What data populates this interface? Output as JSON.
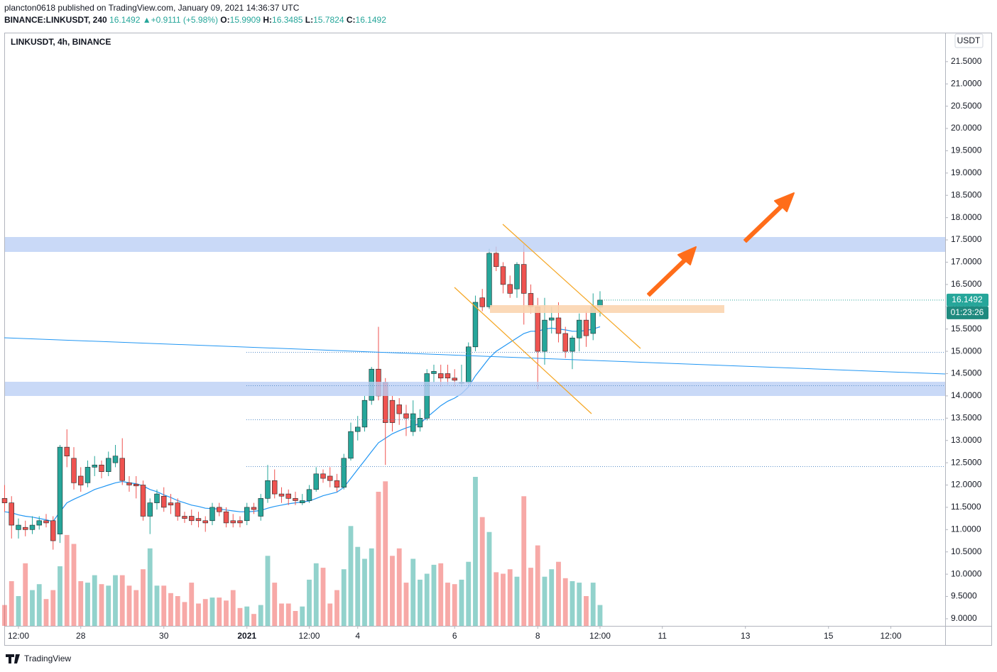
{
  "header": {
    "published": "plancton0618 published on TradingView.com, January 09, 2021 14:36:37 UTC",
    "symbol": "BINANCE:LINKUSDT, 240",
    "change": "+0.9111 (+5.98%)",
    "currency": "USDT",
    "countdown": "01:23:26",
    "brand": "TradingView"
  },
  "chart_data": {
    "type": "candlestick",
    "title": "LINKUSDT, 4h, BINANCE",
    "up_color": "#26a69a",
    "down_color": "#ef5350",
    "ma_color": "#2196f3",
    "open": [
      11.7,
      11.6,
      11.0,
      11.05,
      11.0,
      11.1,
      11.2,
      11.2,
      10.9,
      12.85,
      12.6,
      12.2,
      12.05,
      12.4,
      12.45,
      12.3,
      12.5,
      12.6,
      12.05,
      12.02,
      12.0,
      11.3,
      11.6,
      11.75,
      11.6,
      11.6,
      11.3,
      11.3,
      11.25,
      11.2,
      11.2,
      11.5,
      11.4,
      11.2,
      11.2,
      11.2,
      11.5,
      11.3,
      11.7,
      12.1,
      11.8,
      11.8,
      11.7,
      11.6,
      11.65,
      11.9,
      12.25,
      12.2,
      12.1,
      11.95,
      12.6,
      13.2,
      13.3,
      13.9,
      14.6,
      14.3,
      13.9,
      13.8,
      13.6,
      13.2,
      13.3,
      13.5,
      14.5,
      14.5,
      14.5,
      14.4,
      14.3,
      14.3,
      15.1,
      16.2,
      16.0,
      17.2,
      16.9,
      16.5,
      16.4,
      16.95,
      16.3,
      16.0,
      15.0,
      15.7,
      15.75,
      15.4,
      15.0,
      15.3,
      15.7,
      15.4,
      15.9909
    ],
    "high": [
      12.0,
      11.75,
      11.25,
      11.2,
      11.3,
      11.3,
      11.35,
      11.3,
      12.9,
      13.25,
      12.85,
      12.4,
      12.55,
      12.65,
      12.55,
      12.75,
      12.9,
      13.05,
      12.2,
      12.2,
      12.1,
      11.7,
      11.9,
      11.95,
      11.8,
      11.7,
      11.4,
      11.45,
      11.4,
      11.3,
      11.6,
      11.6,
      11.5,
      11.35,
      11.3,
      11.6,
      11.6,
      11.8,
      12.45,
      12.35,
      11.95,
      11.9,
      11.85,
      11.8,
      12.0,
      12.4,
      12.35,
      12.4,
      12.25,
      12.7,
      13.4,
      13.55,
      14.0,
      14.65,
      15.55,
      14.4,
      14.0,
      13.95,
      13.8,
      13.9,
      13.7,
      14.6,
      14.7,
      14.7,
      14.7,
      14.6,
      14.7,
      15.2,
      16.25,
      16.4,
      17.3,
      17.35,
      17.0,
      16.7,
      17.0,
      17.4,
      16.5,
      16.2,
      16.2,
      16.0,
      16.1,
      15.55,
      15.35,
      15.85,
      15.9,
      16.3,
      16.3485
    ],
    "low": [
      11.4,
      10.8,
      10.8,
      10.85,
      10.9,
      11.0,
      11.05,
      10.55,
      10.7,
      12.4,
      11.9,
      11.85,
      11.95,
      12.2,
      12.15,
      12.2,
      12.4,
      12.0,
      11.85,
      11.7,
      11.2,
      10.9,
      11.45,
      11.4,
      11.35,
      11.2,
      11.15,
      11.1,
      11.05,
      10.95,
      11.1,
      11.3,
      11.05,
      11.05,
      11.05,
      11.1,
      11.35,
      11.2,
      11.6,
      11.7,
      11.6,
      11.55,
      11.55,
      11.55,
      11.6,
      11.85,
      12.05,
      11.95,
      11.85,
      11.9,
      12.55,
      13.0,
      13.2,
      13.8,
      13.9,
      12.45,
      13.2,
      13.35,
      13.1,
      13.1,
      13.2,
      13.45,
      14.3,
      14.2,
      14.25,
      14.2,
      14.2,
      14.25,
      15.0,
      15.9,
      15.95,
      16.8,
      16.3,
      16.2,
      16.2,
      15.6,
      15.85,
      14.15,
      14.7,
      15.4,
      15.2,
      14.85,
      14.6,
      15.0,
      15.1,
      15.25,
      15.7824
    ],
    "close": [
      11.6,
      11.1,
      11.1,
      11.0,
      11.1,
      11.2,
      11.15,
      10.75,
      12.85,
      12.65,
      12.05,
      12.0,
      12.4,
      12.45,
      12.3,
      12.6,
      12.65,
      12.1,
      12.0,
      11.98,
      11.3,
      11.6,
      11.8,
      11.5,
      11.55,
      11.3,
      11.25,
      11.2,
      11.2,
      11.15,
      11.5,
      11.4,
      11.15,
      11.15,
      11.15,
      11.5,
      11.45,
      11.7,
      12.1,
      11.8,
      11.75,
      11.7,
      11.65,
      11.65,
      11.9,
      12.25,
      12.15,
      12.1,
      11.95,
      12.6,
      13.2,
      13.3,
      13.9,
      14.6,
      14.0,
      13.4,
      13.4,
      13.6,
      13.5,
      13.6,
      13.5,
      14.5,
      14.55,
      14.4,
      14.4,
      14.35,
      14.3,
      15.1,
      16.1,
      16.0,
      17.2,
      16.9,
      16.5,
      16.3,
      16.95,
      16.3,
      16.0,
      15.0,
      15.7,
      15.75,
      15.4,
      15.0,
      15.3,
      15.7,
      15.35,
      16.0,
      16.1492
    ],
    "volume": [
      14,
      30,
      20,
      42,
      24,
      28,
      18,
      24,
      40,
      61,
      55,
      30,
      29,
      34,
      28,
      27,
      34,
      34,
      27,
      24,
      38,
      52,
      27,
      27,
      22,
      20,
      16,
      29,
      15,
      18,
      19,
      19,
      17,
      24,
      12,
      13,
      8,
      14,
      47,
      29,
      15,
      15,
      10,
      13,
      31,
      42,
      39,
      15,
      24,
      38,
      67,
      53,
      45,
      52,
      90,
      97,
      47,
      52,
      29,
      45,
      31,
      35,
      41,
      42,
      29,
      28,
      31,
      43,
      100,
      73,
      63,
      36,
      35,
      38,
      33,
      87,
      39,
      54,
      33,
      38,
      43,
      32,
      30,
      29,
      20,
      29,
      14
    ],
    "ma": [
      11.4,
      11.38,
      11.33,
      11.3,
      11.28,
      11.25,
      11.22,
      11.18,
      11.4,
      11.6,
      11.68,
      11.75,
      11.82,
      11.9,
      11.95,
      12.0,
      12.05,
      12.08,
      12.05,
      12.03,
      11.98,
      11.9,
      11.85,
      11.78,
      11.72,
      11.65,
      11.6,
      11.55,
      11.52,
      11.48,
      11.47,
      11.46,
      11.44,
      11.42,
      11.4,
      11.4,
      11.41,
      11.43,
      11.48,
      11.52,
      11.55,
      11.58,
      11.6,
      11.62,
      11.64,
      11.7,
      11.76,
      11.8,
      11.84,
      11.95,
      12.15,
      12.35,
      12.55,
      12.75,
      12.95,
      13.05,
      13.15,
      13.22,
      13.28,
      13.33,
      13.38,
      13.52,
      13.65,
      13.78,
      13.88,
      13.95,
      14.05,
      14.2,
      14.45,
      14.65,
      14.85,
      15.0,
      15.1,
      15.2,
      15.3,
      15.4,
      15.45,
      15.45,
      15.5,
      15.52,
      15.5,
      15.48,
      15.45,
      15.45,
      15.47,
      15.5,
      15.55
    ],
    "xlim": [
      -0.05,
      135.85
    ],
    "xticks": [
      {
        "value": 2,
        "label": "12:00"
      },
      {
        "value": 11,
        "label": "28"
      },
      {
        "value": 23,
        "label": "30"
      },
      {
        "value": 35,
        "label": "2021"
      },
      {
        "value": 44,
        "label": "12:00"
      },
      {
        "value": 51,
        "label": "4"
      },
      {
        "value": 65,
        "label": "6"
      },
      {
        "value": 77,
        "label": "8"
      },
      {
        "value": 86,
        "label": "12:00"
      },
      {
        "value": 95,
        "label": "11"
      },
      {
        "value": 107,
        "label": "13"
      },
      {
        "value": 119,
        "label": "15"
      },
      {
        "value": 128,
        "label": "12:00"
      }
    ],
    "ylim": [
      8.84,
      22.15
    ],
    "yticks": [
      {
        "value": 9,
        "label": "9.0000"
      },
      {
        "value": 9.5,
        "label": "9.5000"
      },
      {
        "value": 10,
        "label": "10.0000"
      },
      {
        "value": 10.5,
        "label": "10.5000"
      },
      {
        "value": 11,
        "label": "11.0000"
      },
      {
        "value": 11.5,
        "label": "11.5000"
      },
      {
        "value": 12,
        "label": "12.0000"
      },
      {
        "value": 12.5,
        "label": "12.5000"
      },
      {
        "value": 13,
        "label": "13.0000"
      },
      {
        "value": 13.5,
        "label": "13.5000"
      },
      {
        "value": 14,
        "label": "14.0000"
      },
      {
        "value": 14.5,
        "label": "14.5000"
      },
      {
        "value": 15,
        "label": "15.0000"
      },
      {
        "value": 15.5,
        "label": "15.5000"
      },
      {
        "value": 16,
        "label": "16.0000"
      },
      {
        "value": 16.5,
        "label": "16.5000"
      },
      {
        "value": 17,
        "label": "17.0000"
      },
      {
        "value": 17.5,
        "label": "17.5000"
      },
      {
        "value": 18,
        "label": "18.0000"
      },
      {
        "value": 18.5,
        "label": "18.5000"
      },
      {
        "value": 19,
        "label": "19.0000"
      },
      {
        "value": 19.5,
        "label": "19.5000"
      },
      {
        "value": 20,
        "label": "20.0000"
      },
      {
        "value": 20.5,
        "label": "20.5000"
      },
      {
        "value": 21,
        "label": "21.0000"
      },
      {
        "value": 21.5,
        "label": "21.5000"
      }
    ],
    "grid": false
  }
}
